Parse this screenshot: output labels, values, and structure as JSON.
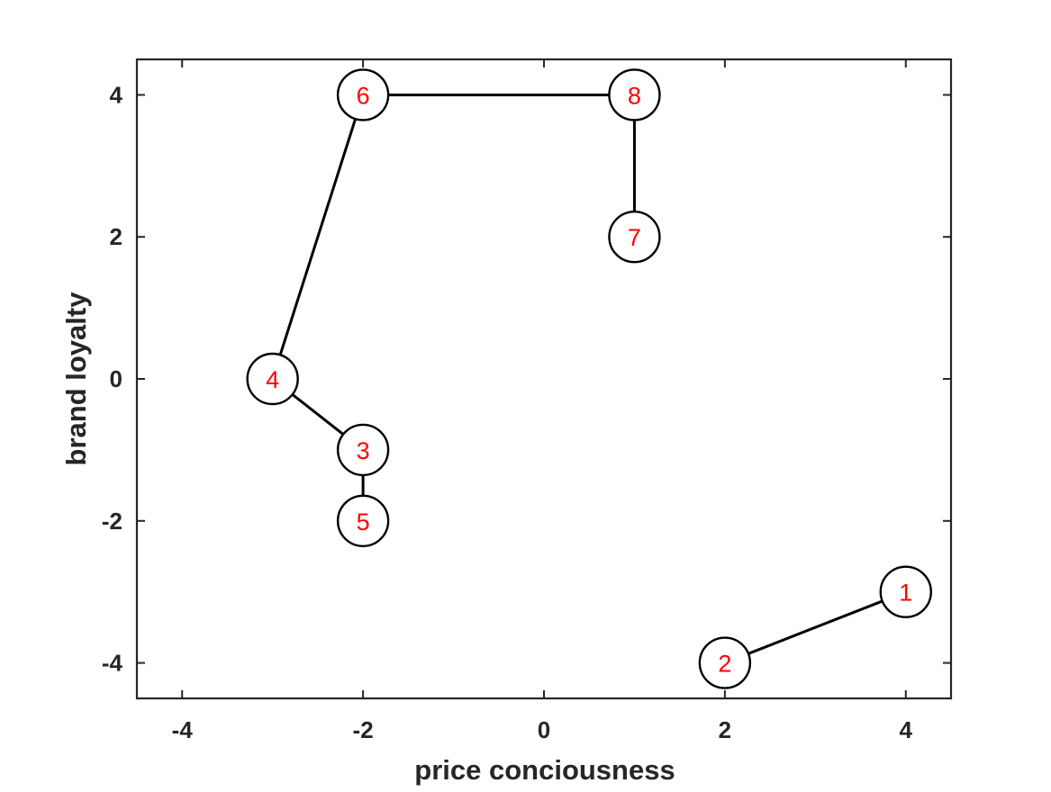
{
  "chart_data": {
    "type": "scatter",
    "xlabel": "price conciousness",
    "ylabel": "brand loyalty",
    "xlim": [
      -4.5,
      4.5
    ],
    "ylim": [
      -4.5,
      4.5
    ],
    "xticks": [
      -4,
      -2,
      0,
      2,
      4
    ],
    "yticks": [
      -4,
      -2,
      0,
      2,
      4
    ],
    "xtick_labels": [
      "-4",
      "-2",
      "0",
      "2",
      "4"
    ],
    "ytick_labels": [
      "-4",
      "-2",
      "0",
      "2",
      "4"
    ],
    "grid": false,
    "points": [
      {
        "label": "1",
        "x": 4,
        "y": -3
      },
      {
        "label": "2",
        "x": 2,
        "y": -4
      },
      {
        "label": "3",
        "x": -2,
        "y": -1
      },
      {
        "label": "4",
        "x": -3,
        "y": 0
      },
      {
        "label": "5",
        "x": -2,
        "y": -2
      },
      {
        "label": "6",
        "x": -2,
        "y": 4
      },
      {
        "label": "7",
        "x": 1,
        "y": 2
      },
      {
        "label": "8",
        "x": 1,
        "y": 4
      }
    ],
    "edges": [
      [
        "1",
        "2"
      ],
      [
        "3",
        "4"
      ],
      [
        "3",
        "5"
      ],
      [
        "4",
        "6"
      ],
      [
        "6",
        "8"
      ],
      [
        "7",
        "8"
      ]
    ],
    "colors": {
      "axis": "#262626",
      "edge": "#000000",
      "node_fill": "#ffffff",
      "node_stroke": "#000000",
      "node_label": "#ff0000"
    }
  }
}
